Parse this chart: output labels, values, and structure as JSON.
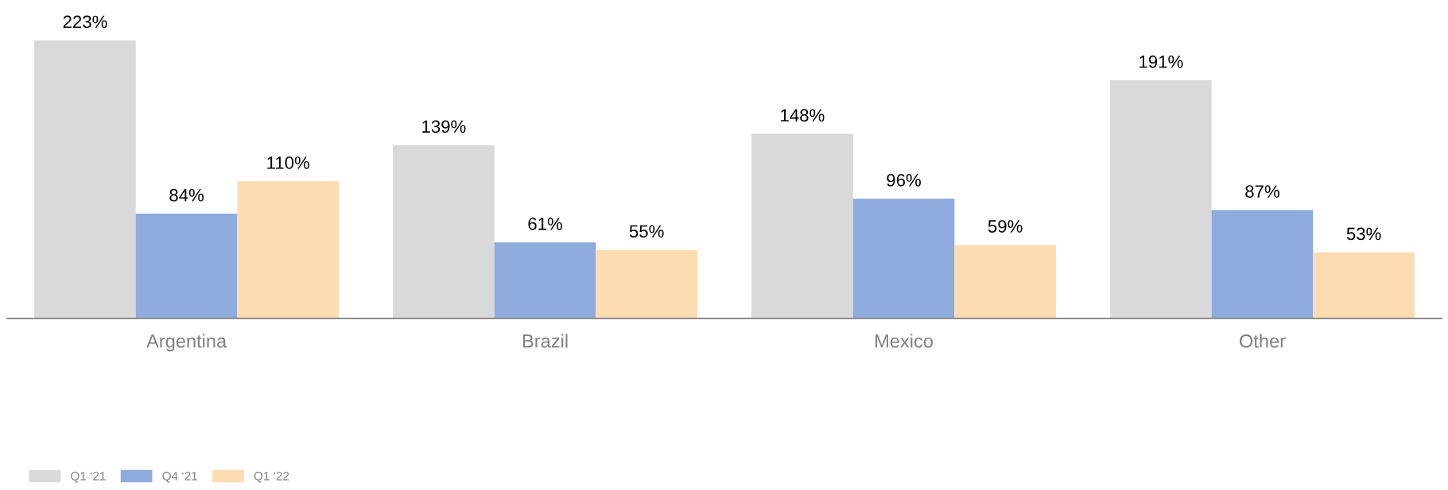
{
  "chart_data": {
    "type": "bar",
    "categories": [
      "Argentina",
      "Brazil",
      "Mexico",
      "Other"
    ],
    "series": [
      {
        "name": "Q1 ‘21",
        "color": "#d9d9d9",
        "values": [
          223,
          139,
          148,
          191
        ],
        "value_labels": [
          "223%",
          "139%",
          "148%",
          "191%"
        ]
      },
      {
        "name": "Q4 ‘21",
        "color": "#8faadc",
        "values": [
          84,
          61,
          96,
          87
        ],
        "value_labels": [
          "84%",
          "61%",
          "96%",
          "87%"
        ]
      },
      {
        "name": "Q1 ‘22",
        "color": "#fddcb1",
        "values": [
          110,
          55,
          59,
          53
        ],
        "value_labels": [
          "110%",
          "55%",
          "59%",
          "53%"
        ]
      }
    ],
    "legend": "bottom left",
    "grid": false,
    "tick_labels": "x"
  }
}
